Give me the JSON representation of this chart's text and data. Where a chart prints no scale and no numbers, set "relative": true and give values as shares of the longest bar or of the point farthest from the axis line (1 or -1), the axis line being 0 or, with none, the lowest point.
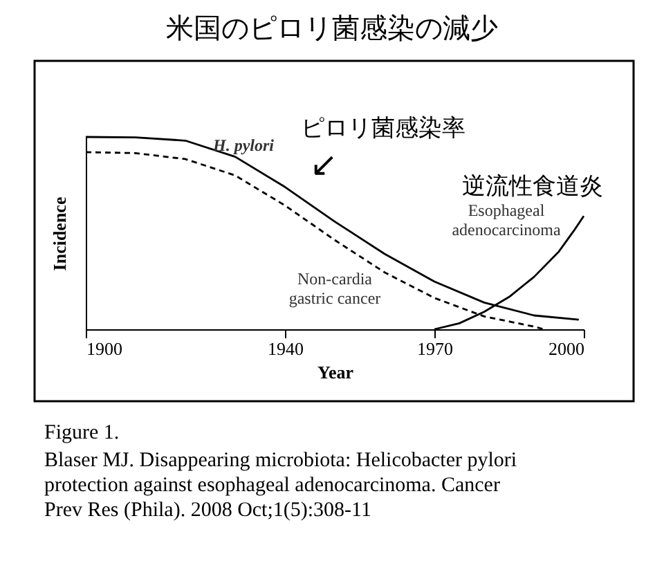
{
  "chart_data": {
    "type": "line",
    "title": "米国のピロリ菌感染の減少",
    "xlabel": "Year",
    "ylabel": "Incidence",
    "relative": true,
    "xlim": [
      1900,
      2000
    ],
    "xticks": [
      1900,
      1940,
      1970,
      2000
    ],
    "grid": false,
    "marker": "none",
    "series": [
      {
        "name": "H. pylori",
        "color": "#000000",
        "line_style": "solid",
        "x": [
          1900,
          1910,
          1920,
          1930,
          1940,
          1950,
          1960,
          1970,
          1980,
          1990,
          1999
        ],
        "values": [
          1.0,
          0.998,
          0.981,
          0.897,
          0.74,
          0.56,
          0.392,
          0.248,
          0.139,
          0.072,
          0.05
        ]
      },
      {
        "name": "Non-cardia gastric cancer",
        "color": "#000000",
        "line_style": "dashed",
        "x": [
          1900,
          1910,
          1920,
          1930,
          1940,
          1950,
          1960,
          1970,
          1980,
          1990,
          1992
        ],
        "values": [
          0.921,
          0.916,
          0.885,
          0.8,
          0.644,
          0.464,
          0.296,
          0.163,
          0.067,
          0.014,
          0.0
        ]
      },
      {
        "name": "Esophageal adenocarcinoma",
        "color": "#000000",
        "line_style": "solid",
        "x": [
          1970,
          1975,
          1980,
          1985,
          1990,
          1995,
          1998,
          2000
        ],
        "values": [
          0.0,
          0.031,
          0.091,
          0.168,
          0.272,
          0.404,
          0.512,
          0.589
        ]
      }
    ],
    "annotations": [
      "ピロリ菌感染率",
      "↙",
      "逆流性食道炎",
      "Figure 1.",
      "Blaser MJ. Disappearing microbiota: Helicobacter pylori protection against esophageal adenocarcinoma. Cancer Prev Res (Phila). 2008 Oct;1(5):308-11"
    ]
  }
}
